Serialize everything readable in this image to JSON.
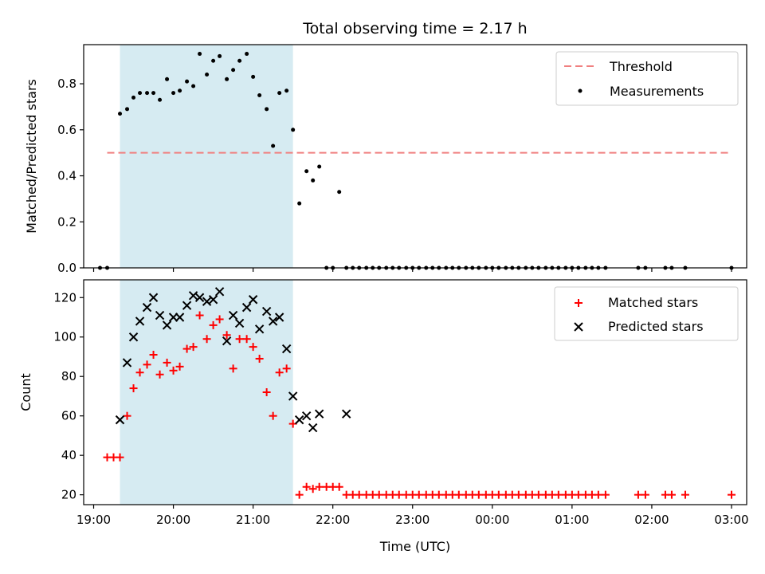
{
  "title": "Total observing time = 2.17 h",
  "colors": {
    "threshold": "#f08080",
    "shade": "#add8e6",
    "matched": "#ff0000",
    "predicted": "#000000",
    "measurement": "#000000"
  },
  "chart_data": [
    {
      "type": "scatter",
      "panel": "top",
      "ylabel": "Matched/Predicted stars",
      "xlabel": "",
      "xlim": [
        18.875,
        27.19
      ],
      "ylim": [
        0,
        0.97
      ],
      "yticks": [
        0.0,
        0.2,
        0.4,
        0.6,
        0.8
      ],
      "yticklabels": [
        "0.0",
        "0.2",
        "0.4",
        "0.6",
        "0.8"
      ],
      "legend": {
        "placement": "upper right",
        "entries": [
          "Threshold",
          "Measurements"
        ]
      },
      "shaded_region": {
        "x0": 19.33,
        "x1": 21.5
      },
      "threshold": {
        "name": "Threshold",
        "y": 0.5,
        "x0": 19.17,
        "x1": 27.0
      },
      "series": [
        {
          "name": "Measurements",
          "x": [
            19.08,
            19.17,
            19.33,
            19.42,
            19.5,
            19.58,
            19.67,
            19.75,
            19.83,
            19.92,
            20.0,
            20.08,
            20.17,
            20.25,
            20.33,
            20.42,
            20.5,
            20.58,
            20.67,
            20.75,
            20.83,
            20.92,
            21.0,
            21.08,
            21.17,
            21.25,
            21.33,
            21.42,
            21.5,
            21.58,
            21.67,
            21.75,
            21.83,
            21.92,
            22.0,
            22.08,
            22.17,
            22.25,
            22.33,
            22.42,
            22.5,
            22.58,
            22.67,
            22.75,
            22.83,
            22.92,
            23.0,
            23.08,
            23.17,
            23.25,
            23.33,
            23.42,
            23.5,
            23.58,
            23.67,
            23.75,
            23.83,
            23.92,
            24.0,
            24.08,
            24.17,
            24.25,
            24.33,
            24.42,
            24.5,
            24.58,
            24.67,
            24.75,
            24.83,
            24.92,
            25.0,
            25.08,
            25.17,
            25.25,
            25.33,
            25.42,
            25.83,
            25.92,
            26.17,
            26.25,
            26.42,
            27.0
          ],
          "y": [
            0,
            0,
            0.67,
            0.69,
            0.74,
            0.76,
            0.76,
            0.76,
            0.73,
            0.82,
            0.76,
            0.77,
            0.81,
            0.79,
            0.93,
            0.84,
            0.9,
            0.92,
            0.82,
            0.86,
            0.9,
            0.93,
            0.83,
            0.75,
            0.69,
            0.53,
            0.76,
            0.77,
            0.6,
            0.28,
            0.42,
            0.38,
            0.44,
            0,
            0,
            0.33,
            0,
            0,
            0,
            0,
            0,
            0,
            0,
            0,
            0,
            0,
            0,
            0,
            0,
            0,
            0,
            0,
            0,
            0,
            0,
            0,
            0,
            0,
            0,
            0,
            0,
            0,
            0,
            0,
            0,
            0,
            0,
            0,
            0,
            0,
            0,
            0,
            0,
            0,
            0,
            0,
            0,
            0,
            0,
            0,
            0,
            0
          ]
        }
      ]
    },
    {
      "type": "scatter",
      "panel": "bottom",
      "ylabel": "Count",
      "xlabel": "Time (UTC)",
      "xlim": [
        18.875,
        27.19
      ],
      "ylim": [
        15,
        129
      ],
      "yticks": [
        20,
        40,
        60,
        80,
        100,
        120
      ],
      "yticklabels": [
        "20",
        "40",
        "60",
        "80",
        "100",
        "120"
      ],
      "xticks": [
        19,
        20,
        21,
        22,
        23,
        24,
        25,
        26,
        27
      ],
      "xticklabels": [
        "19:00",
        "20:00",
        "21:00",
        "22:00",
        "23:00",
        "00:00",
        "01:00",
        "02:00",
        "03:00"
      ],
      "legend": {
        "placement": "upper right",
        "entries": [
          "Matched stars",
          "Predicted stars"
        ]
      },
      "shaded_region": {
        "x0": 19.33,
        "x1": 21.5
      },
      "series": [
        {
          "name": "Matched stars",
          "marker": "plus",
          "x": [
            19.17,
            19.25,
            19.33,
            19.42,
            19.5,
            19.58,
            19.67,
            19.75,
            19.83,
            19.92,
            20.0,
            20.08,
            20.17,
            20.25,
            20.33,
            20.42,
            20.5,
            20.58,
            20.67,
            20.75,
            20.83,
            20.92,
            21.0,
            21.08,
            21.17,
            21.25,
            21.33,
            21.42,
            21.5,
            21.58,
            21.67,
            21.75,
            21.83,
            21.92,
            22.0,
            22.08,
            22.17,
            22.25,
            22.33,
            22.42,
            22.5,
            22.58,
            22.67,
            22.75,
            22.83,
            22.92,
            23.0,
            23.08,
            23.17,
            23.25,
            23.33,
            23.42,
            23.5,
            23.58,
            23.67,
            23.75,
            23.83,
            23.92,
            24.0,
            24.08,
            24.17,
            24.25,
            24.33,
            24.42,
            24.5,
            24.58,
            24.67,
            24.75,
            24.83,
            24.92,
            25.0,
            25.08,
            25.17,
            25.25,
            25.33,
            25.42,
            25.83,
            25.92,
            26.17,
            26.25,
            26.42,
            27.0
          ],
          "y": [
            39,
            39,
            39,
            60,
            74,
            82,
            86,
            91,
            81,
            87,
            83,
            85,
            94,
            95,
            111,
            99,
            106,
            109,
            101,
            84,
            99,
            99,
            95,
            89,
            72,
            60,
            82,
            84,
            56,
            20,
            24,
            23,
            24,
            24,
            24,
            24,
            20,
            20,
            20,
            20,
            20,
            20,
            20,
            20,
            20,
            20,
            20,
            20,
            20,
            20,
            20,
            20,
            20,
            20,
            20,
            20,
            20,
            20,
            20,
            20,
            20,
            20,
            20,
            20,
            20,
            20,
            20,
            20,
            20,
            20,
            20,
            20,
            20,
            20,
            20,
            20,
            20,
            20,
            20,
            20,
            20,
            20
          ]
        },
        {
          "name": "Predicted stars",
          "marker": "x",
          "x": [
            19.33,
            19.42,
            19.5,
            19.58,
            19.67,
            19.75,
            19.83,
            19.92,
            20.0,
            20.08,
            20.17,
            20.25,
            20.33,
            20.42,
            20.5,
            20.58,
            20.67,
            20.75,
            20.83,
            20.92,
            21.0,
            21.08,
            21.17,
            21.25,
            21.33,
            21.42,
            21.5,
            21.58,
            21.67,
            21.75,
            21.83,
            22.17
          ],
          "y": [
            58,
            87,
            100,
            108,
            115,
            120,
            111,
            106,
            110,
            110,
            116,
            121,
            120,
            118,
            119,
            123,
            98,
            111,
            107,
            115,
            119,
            104,
            113,
            108,
            110,
            94,
            70,
            58,
            60,
            54,
            61,
            61
          ]
        }
      ]
    }
  ]
}
